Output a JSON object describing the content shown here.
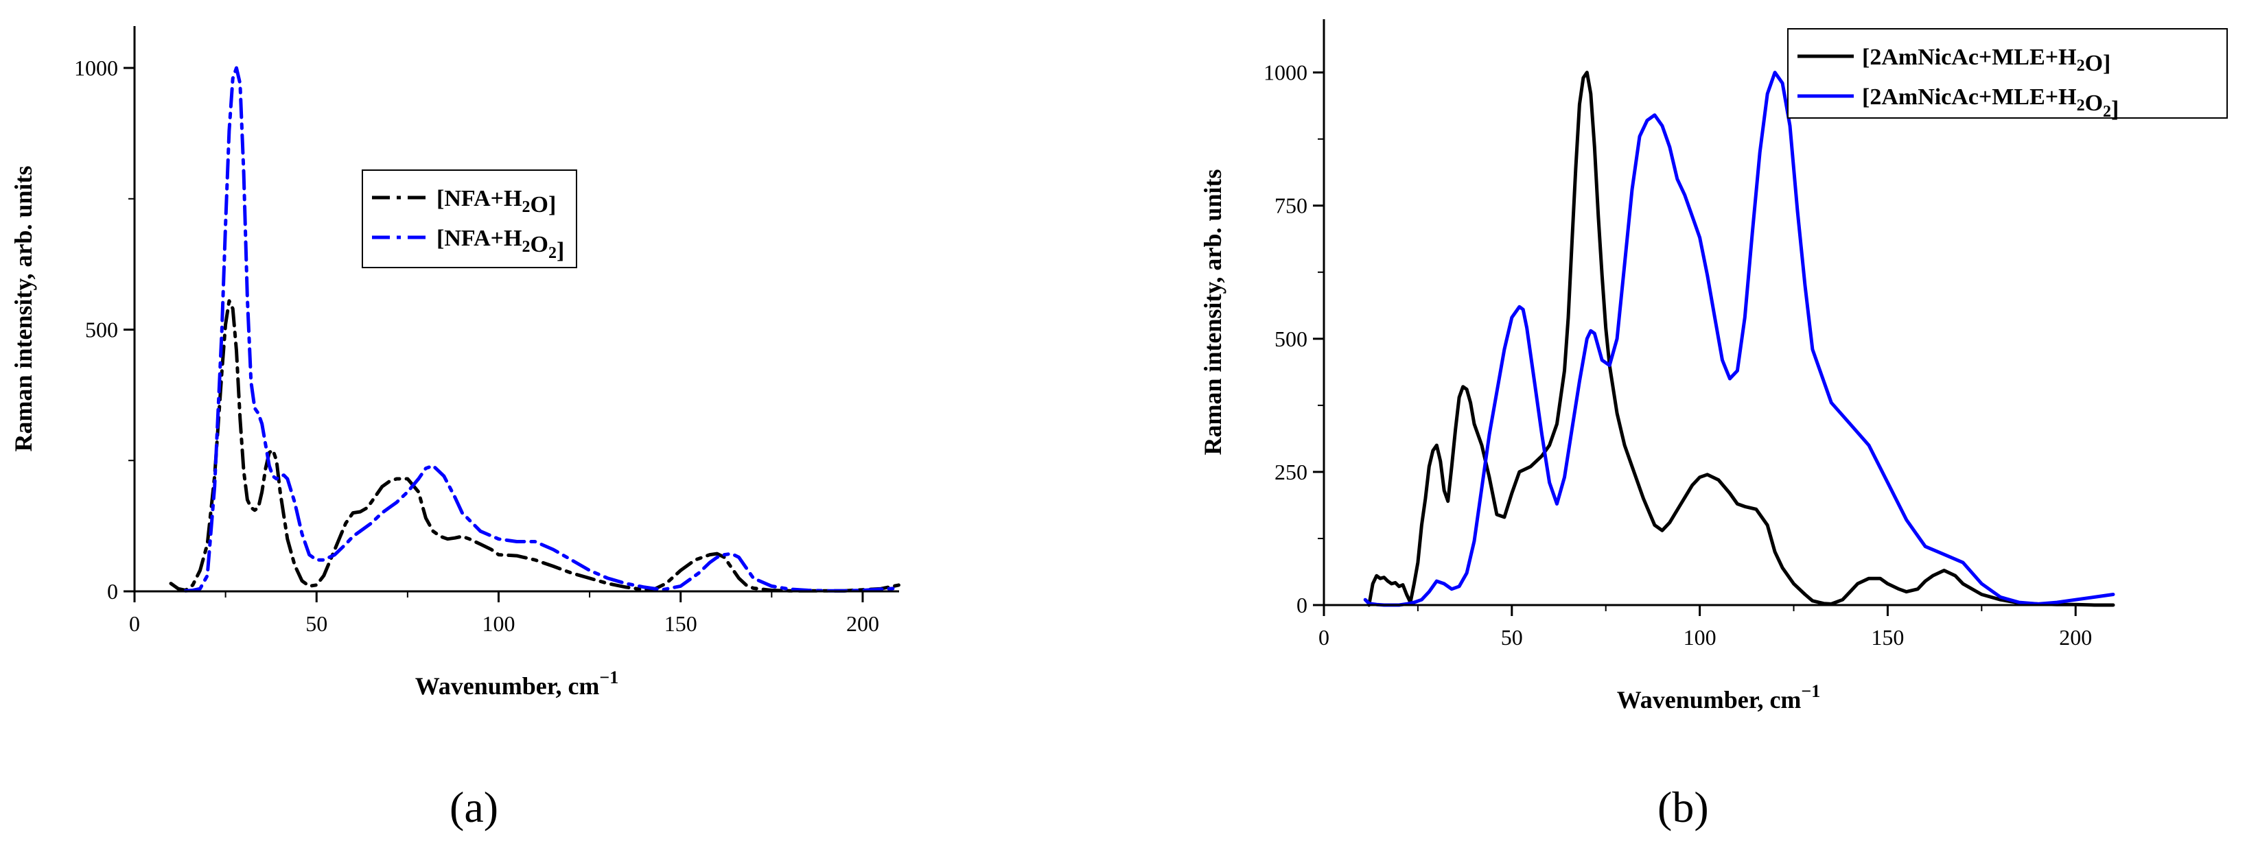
{
  "captions": {
    "a": "(a)",
    "b": "(b)"
  },
  "chart_data": [
    {
      "type": "line",
      "panel": "a",
      "xlabel": "Wavenumber, cm",
      "xlabel_sup": "−1",
      "ylabel": "Raman intensity, arb. units",
      "xlim": [
        0,
        210
      ],
      "ylim": [
        0,
        1080
      ],
      "xticks": [
        0,
        50,
        100,
        150,
        200
      ],
      "yticks": [
        0,
        500,
        1000
      ],
      "legend_position": "upper-middle",
      "series": [
        {
          "name": "[NFA+H₂O]",
          "color": "#000000",
          "dash": "dash-dot",
          "x": [
            10,
            12,
            14,
            16,
            18,
            20,
            22,
            24,
            25,
            26,
            27,
            28,
            29,
            30,
            31,
            32,
            33,
            34,
            35,
            36,
            37,
            38,
            39,
            40,
            42,
            44,
            46,
            48,
            50,
            52,
            55,
            58,
            60,
            62,
            64,
            66,
            68,
            70,
            72,
            75,
            78,
            80,
            82,
            84,
            86,
            88,
            90,
            92,
            95,
            98,
            100,
            105,
            110,
            115,
            120,
            125,
            130,
            135,
            140,
            143,
            146,
            150,
            154,
            158,
            160,
            162,
            164,
            166,
            168,
            170,
            175,
            180,
            185,
            190,
            195,
            200,
            205,
            210
          ],
          "y": [
            15,
            5,
            2,
            12,
            40,
            90,
            220,
            420,
            510,
            555,
            540,
            460,
            330,
            230,
            175,
            160,
            155,
            160,
            190,
            235,
            265,
            270,
            250,
            190,
            100,
            50,
            20,
            10,
            12,
            30,
            80,
            130,
            150,
            152,
            160,
            180,
            200,
            210,
            215,
            215,
            190,
            140,
            115,
            105,
            100,
            102,
            105,
            100,
            90,
            80,
            70,
            68,
            60,
            48,
            35,
            25,
            15,
            8,
            3,
            5,
            15,
            40,
            60,
            70,
            72,
            65,
            45,
            25,
            12,
            6,
            2,
            1,
            1,
            1,
            1,
            3,
            5,
            12
          ]
        },
        {
          "name": "[NFA+H₂O₂]",
          "color": "#0000ff",
          "dash": "dash-dot",
          "x": [
            14,
            16,
            18,
            20,
            22,
            24,
            25,
            26,
            27,
            28,
            29,
            30,
            31,
            32,
            33,
            34,
            35,
            36,
            37,
            38,
            39,
            40,
            41,
            42,
            44,
            46,
            48,
            50,
            52,
            55,
            58,
            60,
            62,
            65,
            68,
            70,
            72,
            75,
            78,
            80,
            82,
            85,
            88,
            90,
            95,
            100,
            105,
            110,
            115,
            120,
            125,
            130,
            135,
            140,
            145,
            150,
            155,
            158,
            160,
            162,
            164,
            166,
            168,
            170,
            175,
            180,
            185,
            190,
            195,
            200,
            205,
            210
          ],
          "y": [
            1,
            2,
            5,
            30,
            200,
            500,
            700,
            880,
            980,
            1000,
            970,
            800,
            560,
            400,
            350,
            340,
            320,
            280,
            240,
            220,
            215,
            220,
            222,
            215,
            170,
            110,
            70,
            60,
            60,
            70,
            90,
            105,
            115,
            130,
            150,
            160,
            170,
            190,
            215,
            235,
            240,
            220,
            180,
            150,
            115,
            100,
            95,
            95,
            80,
            60,
            40,
            25,
            15,
            8,
            3,
            10,
            35,
            55,
            65,
            70,
            72,
            65,
            45,
            25,
            10,
            4,
            2,
            1,
            1,
            2,
            4,
            6
          ]
        }
      ]
    },
    {
      "type": "line",
      "panel": "b",
      "xlabel": "Wavenumber, cm",
      "xlabel_sup": "−1",
      "ylabel": "Raman intensity, arb. units",
      "xlim": [
        0,
        210
      ],
      "ylim": [
        0,
        1100
      ],
      "xticks": [
        0,
        50,
        100,
        150,
        200
      ],
      "yticks": [
        0,
        250,
        500,
        750,
        1000
      ],
      "legend_position": "top-right",
      "series": [
        {
          "name": "[2AmNicAc+MLE+H₂O]",
          "color": "#000000",
          "dash": "solid",
          "x": [
            12,
            13,
            14,
            15,
            16,
            17,
            18,
            19,
            20,
            21,
            22,
            23,
            24,
            25,
            26,
            27,
            28,
            29,
            30,
            31,
            32,
            33,
            34,
            35,
            36,
            37,
            38,
            39,
            40,
            42,
            44,
            46,
            48,
            50,
            52,
            55,
            58,
            60,
            62,
            64,
            65,
            66,
            67,
            68,
            69,
            70,
            71,
            72,
            73,
            74,
            75,
            76,
            78,
            80,
            82,
            85,
            88,
            90,
            92,
            95,
            98,
            100,
            102,
            105,
            108,
            110,
            112,
            115,
            118,
            120,
            122,
            125,
            128,
            130,
            133,
            135,
            138,
            140,
            142,
            145,
            148,
            150,
            153,
            155,
            158,
            160,
            162,
            165,
            168,
            170,
            175,
            180,
            185,
            190,
            195,
            200,
            205,
            210
          ],
          "y": [
            0,
            40,
            55,
            50,
            52,
            45,
            40,
            42,
            35,
            38,
            20,
            5,
            40,
            80,
            150,
            200,
            260,
            290,
            300,
            270,
            215,
            195,
            260,
            330,
            390,
            410,
            405,
            380,
            340,
            300,
            240,
            170,
            165,
            210,
            250,
            260,
            280,
            300,
            340,
            440,
            540,
            680,
            820,
            940,
            990,
            1000,
            960,
            860,
            730,
            620,
            520,
            450,
            360,
            300,
            260,
            200,
            150,
            140,
            155,
            190,
            225,
            240,
            245,
            235,
            210,
            190,
            185,
            180,
            150,
            100,
            70,
            40,
            20,
            8,
            3,
            2,
            10,
            25,
            40,
            50,
            50,
            40,
            30,
            25,
            30,
            45,
            55,
            65,
            55,
            40,
            20,
            10,
            4,
            2,
            1,
            1,
            0,
            0
          ]
        },
        {
          "name": "[2AmNicAc+MLE+H₂O₂]",
          "color": "#0000ff",
          "dash": "solid",
          "x": [
            11,
            12,
            14,
            16,
            18,
            20,
            22,
            24,
            26,
            28,
            30,
            32,
            34,
            36,
            38,
            40,
            42,
            44,
            46,
            48,
            50,
            52,
            53,
            54,
            56,
            58,
            60,
            62,
            64,
            66,
            68,
            70,
            71,
            72,
            74,
            76,
            78,
            80,
            82,
            84,
            86,
            88,
            90,
            92,
            94,
            96,
            98,
            100,
            102,
            104,
            106,
            108,
            110,
            112,
            114,
            116,
            118,
            120,
            122,
            124,
            126,
            128,
            130,
            135,
            140,
            145,
            150,
            155,
            160,
            165,
            170,
            175,
            180,
            185,
            190,
            195,
            200,
            205,
            210
          ],
          "y": [
            10,
            3,
            1,
            0,
            0,
            0,
            2,
            5,
            10,
            25,
            45,
            40,
            30,
            35,
            60,
            120,
            220,
            320,
            400,
            480,
            540,
            560,
            555,
            520,
            420,
            320,
            230,
            190,
            240,
            330,
            420,
            500,
            515,
            510,
            460,
            450,
            500,
            640,
            780,
            880,
            910,
            920,
            900,
            860,
            800,
            770,
            730,
            690,
            620,
            540,
            460,
            425,
            440,
            540,
            700,
            850,
            960,
            1000,
            980,
            900,
            740,
            600,
            480,
            380,
            340,
            300,
            230,
            160,
            110,
            95,
            80,
            40,
            15,
            5,
            2,
            5,
            10,
            15,
            20
          ]
        }
      ]
    }
  ]
}
